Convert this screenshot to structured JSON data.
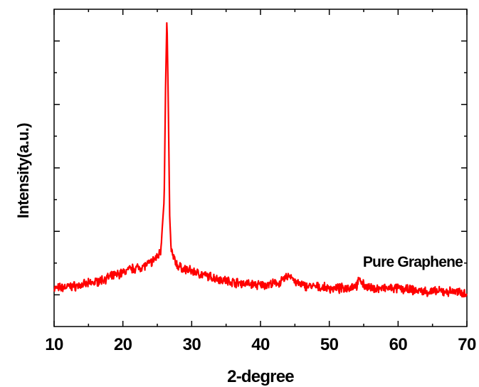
{
  "chart_data": {
    "type": "line",
    "title": "",
    "xlabel": "2-degree",
    "ylabel": "Intensity(a.u.)",
    "xlim": [
      10,
      70
    ],
    "ylim": [
      0,
      100
    ],
    "x_ticks": [
      10,
      20,
      30,
      40,
      50,
      60,
      70
    ],
    "y_tick_labels_shown": false,
    "grid": false,
    "annotation": "Pure Graphene",
    "line_color": "#ff0000",
    "series": [
      {
        "x": [
          10,
          12,
          14,
          16,
          18,
          20,
          21,
          22,
          23,
          24,
          25,
          25.5,
          26,
          26.2,
          26.4,
          26.6,
          26.8,
          27,
          27.5,
          28,
          29,
          30,
          32,
          34,
          36,
          38,
          40,
          42,
          43,
          44,
          44.5,
          45,
          46,
          48,
          50,
          52,
          54,
          54.5,
          55,
          56,
          58,
          60,
          62,
          64,
          66,
          68,
          70
        ],
        "y": [
          12,
          12.5,
          13,
          14,
          15.5,
          17,
          18,
          18.5,
          19,
          20,
          22,
          24,
          40,
          75,
          98,
          70,
          35,
          24,
          21,
          19,
          18,
          17.5,
          16,
          15,
          14,
          13.5,
          13,
          13.5,
          14,
          16,
          16,
          14,
          13,
          12.5,
          12,
          12,
          13,
          15,
          13,
          12,
          12,
          12,
          11.5,
          11,
          11,
          11,
          10.5
        ]
      }
    ]
  }
}
